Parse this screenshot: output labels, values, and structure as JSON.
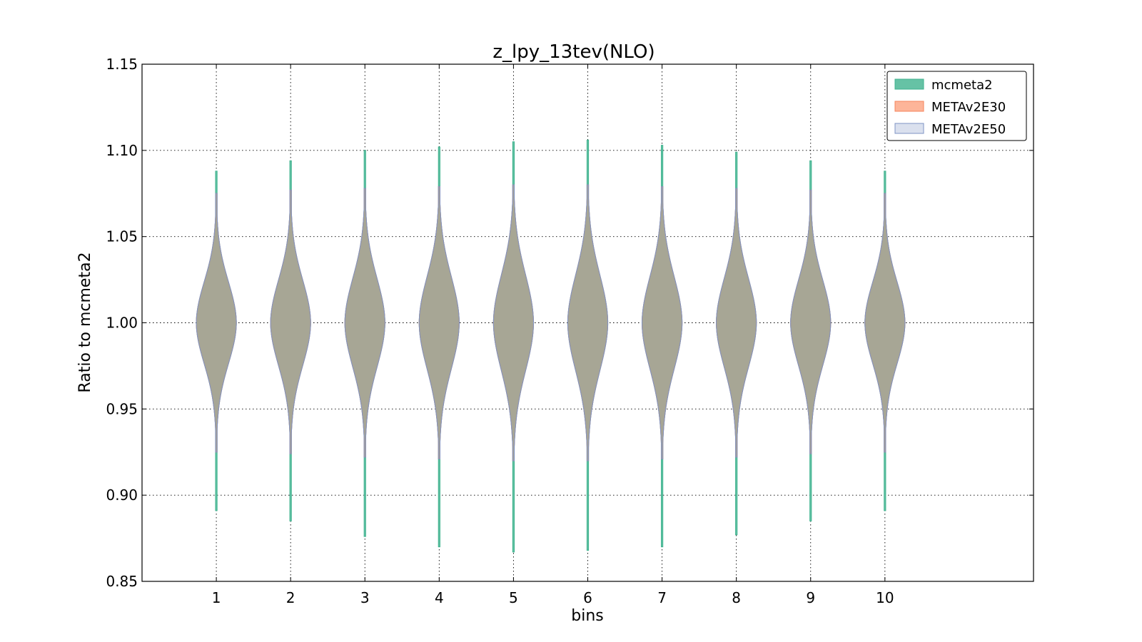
{
  "chart_data": {
    "type": "violin",
    "title": "z_lpy_13tev(NLO)",
    "xlabel": "bins",
    "ylabel": "Ratio to mcmeta2",
    "xlim": [
      0,
      12
    ],
    "ylim": [
      0.85,
      1.15
    ],
    "x_ticks": [
      1,
      2,
      3,
      4,
      5,
      6,
      7,
      8,
      9,
      10
    ],
    "x_tick_labels": [
      "1",
      "2",
      "3",
      "4",
      "5",
      "6",
      "7",
      "8",
      "9",
      "10"
    ],
    "y_ticks": [
      0.85,
      0.9,
      0.95,
      1.0,
      1.05,
      1.1,
      1.15
    ],
    "y_tick_labels": [
      "0.85",
      "0.90",
      "0.95",
      "1.00",
      "1.05",
      "1.10",
      "1.15"
    ],
    "grid": true,
    "legend_position": "top-right",
    "half_width": 0.27,
    "series": [
      {
        "name": "mcmeta2",
        "fill": "#66c2a5",
        "stroke": "#3fb38f",
        "opacity": 1,
        "bins": [
          {
            "x": 1,
            "min": 0.891,
            "max": 1.088,
            "sigma": 0.024
          },
          {
            "x": 2,
            "min": 0.885,
            "max": 1.094,
            "sigma": 0.025
          },
          {
            "x": 3,
            "min": 0.876,
            "max": 1.1,
            "sigma": 0.026
          },
          {
            "x": 4,
            "min": 0.87,
            "max": 1.102,
            "sigma": 0.027
          },
          {
            "x": 5,
            "min": 0.867,
            "max": 1.105,
            "sigma": 0.028
          },
          {
            "x": 6,
            "min": 0.868,
            "max": 1.106,
            "sigma": 0.028
          },
          {
            "x": 7,
            "min": 0.87,
            "max": 1.103,
            "sigma": 0.027
          },
          {
            "x": 8,
            "min": 0.877,
            "max": 1.099,
            "sigma": 0.026
          },
          {
            "x": 9,
            "min": 0.885,
            "max": 1.094,
            "sigma": 0.025
          },
          {
            "x": 10,
            "min": 0.891,
            "max": 1.088,
            "sigma": 0.024
          }
        ]
      },
      {
        "name": "METAv2E30",
        "fill": "#fc8d62",
        "stroke": "#f5845c",
        "opacity": 0.5,
        "bins": [
          {
            "x": 1,
            "min": 0.925,
            "max": 1.075,
            "sigma": 0.024
          },
          {
            "x": 2,
            "min": 0.924,
            "max": 1.077,
            "sigma": 0.025
          },
          {
            "x": 3,
            "min": 0.922,
            "max": 1.078,
            "sigma": 0.026
          },
          {
            "x": 4,
            "min": 0.921,
            "max": 1.079,
            "sigma": 0.027
          },
          {
            "x": 5,
            "min": 0.92,
            "max": 1.08,
            "sigma": 0.028
          },
          {
            "x": 6,
            "min": 0.92,
            "max": 1.08,
            "sigma": 0.028
          },
          {
            "x": 7,
            "min": 0.921,
            "max": 1.079,
            "sigma": 0.027
          },
          {
            "x": 8,
            "min": 0.922,
            "max": 1.078,
            "sigma": 0.026
          },
          {
            "x": 9,
            "min": 0.924,
            "max": 1.077,
            "sigma": 0.025
          },
          {
            "x": 10,
            "min": 0.925,
            "max": 1.075,
            "sigma": 0.024
          }
        ]
      },
      {
        "name": "METAv2E50",
        "fill": "#8da0cb",
        "stroke": "#7f93c4",
        "opacity": 0.25,
        "bins": [
          {
            "x": 1,
            "min": 0.925,
            "max": 1.075,
            "sigma": 0.024
          },
          {
            "x": 2,
            "min": 0.924,
            "max": 1.077,
            "sigma": 0.025
          },
          {
            "x": 3,
            "min": 0.922,
            "max": 1.078,
            "sigma": 0.026
          },
          {
            "x": 4,
            "min": 0.921,
            "max": 1.079,
            "sigma": 0.027
          },
          {
            "x": 5,
            "min": 0.92,
            "max": 1.08,
            "sigma": 0.028
          },
          {
            "x": 6,
            "min": 0.92,
            "max": 1.08,
            "sigma": 0.028
          },
          {
            "x": 7,
            "min": 0.921,
            "max": 1.079,
            "sigma": 0.027
          },
          {
            "x": 8,
            "min": 0.922,
            "max": 1.078,
            "sigma": 0.026
          },
          {
            "x": 9,
            "min": 0.924,
            "max": 1.077,
            "sigma": 0.025
          },
          {
            "x": 10,
            "min": 0.925,
            "max": 1.075,
            "sigma": 0.024
          }
        ]
      }
    ]
  }
}
